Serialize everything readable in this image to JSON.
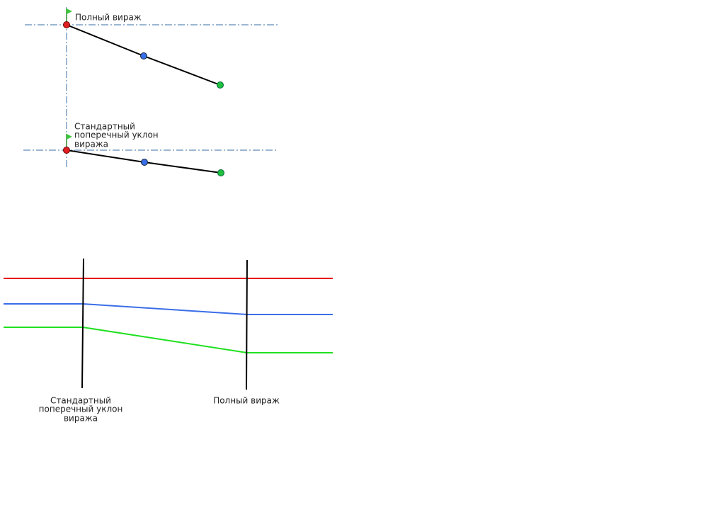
{
  "diagram": {
    "section_full": {
      "label_lines": [
        "Полный вираж"
      ]
    },
    "section_standard": {
      "label_lines": [
        "Стандартный",
        "поперечный уклон",
        "виража"
      ]
    },
    "profile_labels": {
      "standard": {
        "label_lines": [
          "Стандартный",
          "поперечный уклон",
          "виража"
        ]
      },
      "full": {
        "label_lines": [
          "Полный вираж"
        ]
      }
    }
  }
}
